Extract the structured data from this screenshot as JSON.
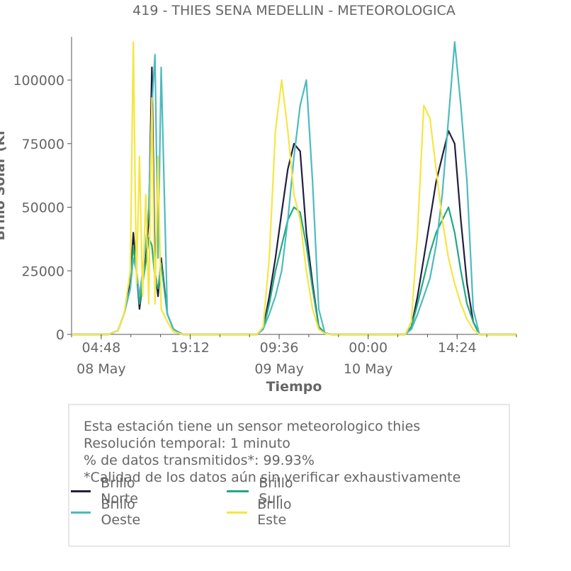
{
  "chart_data": {
    "type": "line",
    "title": "419 - THIES SENA MEDELLIN - METEOROLOGICA",
    "xlabel": "Tiempo",
    "ylabel": "Brillo Solar (Kl",
    "ylim": [
      0,
      117000
    ],
    "yticks": [
      0,
      25000,
      50000,
      75000,
      100000
    ],
    "ytick_labels": [
      "0",
      "25000",
      "50000",
      "75000",
      "100000"
    ],
    "xlim": [
      "2024-05-08 00:00",
      "2024-05-11 00:00"
    ],
    "xticks": [
      {
        "t": "2024-05-08 04:48",
        "label": "04:48",
        "date_label": "08 May"
      },
      {
        "t": "2024-05-08 19:12",
        "label": "19:12",
        "date_label": ""
      },
      {
        "t": "2024-05-09 09:36",
        "label": "09:36",
        "date_label": "09 May"
      },
      {
        "t": "2024-05-10 00:00",
        "label": "00:00",
        "date_label": "10 May"
      },
      {
        "t": "2024-05-10 14:24",
        "label": "14:24",
        "date_label": ""
      }
    ],
    "series": [
      {
        "name": "Brillo Norte",
        "color": "#1f1f3f",
        "x": [
          "2024-05-08 00:00",
          "2024-05-08 06:00",
          "2024-05-08 07:30",
          "2024-05-08 08:30",
          "2024-05-08 09:30",
          "2024-05-08 10:00",
          "2024-05-08 10:30",
          "2024-05-08 11:00",
          "2024-05-08 11:30",
          "2024-05-08 12:00",
          "2024-05-08 12:30",
          "2024-05-08 13:00",
          "2024-05-08 13:30",
          "2024-05-08 14:00",
          "2024-05-08 14:30",
          "2024-05-08 15:30",
          "2024-05-08 16:30",
          "2024-05-08 18:00",
          "2024-05-09 06:00",
          "2024-05-09 07:00",
          "2024-05-09 08:00",
          "2024-05-09 09:00",
          "2024-05-09 10:00",
          "2024-05-09 11:00",
          "2024-05-09 12:00",
          "2024-05-09 13:00",
          "2024-05-09 14:00",
          "2024-05-09 15:00",
          "2024-05-09 16:00",
          "2024-05-09 17:00",
          "2024-05-09 18:00",
          "2024-05-10 06:00",
          "2024-05-10 07:00",
          "2024-05-10 08:00",
          "2024-05-10 09:00",
          "2024-05-10 10:00",
          "2024-05-10 11:00",
          "2024-05-10 12:00",
          "2024-05-10 13:00",
          "2024-05-10 14:00",
          "2024-05-10 15:00",
          "2024-05-10 16:00",
          "2024-05-10 17:00",
          "2024-05-10 18:00",
          "2024-05-11 00:00"
        ],
        "values": [
          0,
          0,
          1500,
          8000,
          20000,
          40000,
          25000,
          10000,
          20000,
          30000,
          45000,
          105000,
          25000,
          15000,
          30000,
          8000,
          2000,
          0,
          0,
          2000,
          15000,
          30000,
          48000,
          65000,
          75000,
          72000,
          40000,
          20000,
          3000,
          500,
          0,
          0,
          3000,
          15000,
          30000,
          45000,
          60000,
          70000,
          80000,
          75000,
          45000,
          20000,
          5000,
          0,
          0
        ]
      },
      {
        "name": "Brillo Sur",
        "color": "#22a884",
        "x": [
          "2024-05-08 00:00",
          "2024-05-08 06:00",
          "2024-05-08 07:30",
          "2024-05-08 08:30",
          "2024-05-08 09:30",
          "2024-05-08 10:00",
          "2024-05-08 10:30",
          "2024-05-08 11:00",
          "2024-05-08 11:30",
          "2024-05-08 12:00",
          "2024-05-08 12:30",
          "2024-05-08 13:00",
          "2024-05-08 13:30",
          "2024-05-08 14:00",
          "2024-05-08 14:30",
          "2024-05-08 15:30",
          "2024-05-08 16:30",
          "2024-05-08 18:00",
          "2024-05-09 06:00",
          "2024-05-09 07:00",
          "2024-05-09 08:00",
          "2024-05-09 09:00",
          "2024-05-09 10:00",
          "2024-05-09 11:00",
          "2024-05-09 12:00",
          "2024-05-09 13:00",
          "2024-05-09 14:00",
          "2024-05-09 15:00",
          "2024-05-09 16:00",
          "2024-05-09 17:00",
          "2024-05-09 18:00",
          "2024-05-10 06:00",
          "2024-05-10 07:00",
          "2024-05-10 08:00",
          "2024-05-10 09:00",
          "2024-05-10 10:00",
          "2024-05-10 11:00",
          "2024-05-10 12:00",
          "2024-05-10 13:00",
          "2024-05-10 14:00",
          "2024-05-10 15:00",
          "2024-05-10 16:00",
          "2024-05-10 17:00",
          "2024-05-10 18:00",
          "2024-05-11 00:00"
        ],
        "values": [
          0,
          0,
          1500,
          8000,
          18000,
          35000,
          25000,
          12000,
          20000,
          28000,
          38000,
          35000,
          22000,
          18000,
          28000,
          8000,
          2000,
          0,
          0,
          2000,
          12000,
          25000,
          35000,
          45000,
          50000,
          48000,
          35000,
          18000,
          3000,
          500,
          0,
          0,
          3000,
          12000,
          22000,
          32000,
          40000,
          45000,
          50000,
          40000,
          25000,
          12000,
          5000,
          0,
          0
        ]
      },
      {
        "name": "Brillo Oeste",
        "color": "#4ebabf",
        "x": [
          "2024-05-08 00:00",
          "2024-05-08 06:00",
          "2024-05-08 07:30",
          "2024-05-08 08:30",
          "2024-05-08 09:30",
          "2024-05-08 10:00",
          "2024-05-08 10:30",
          "2024-05-08 11:00",
          "2024-05-08 11:30",
          "2024-05-08 12:00",
          "2024-05-08 12:30",
          "2024-05-08 13:00",
          "2024-05-08 13:30",
          "2024-05-08 14:00",
          "2024-05-08 14:30",
          "2024-05-08 15:30",
          "2024-05-08 16:30",
          "2024-05-08 18:00",
          "2024-05-09 06:00",
          "2024-05-09 07:00",
          "2024-05-09 08:00",
          "2024-05-09 09:00",
          "2024-05-09 10:00",
          "2024-05-09 11:00",
          "2024-05-09 12:00",
          "2024-05-09 13:00",
          "2024-05-09 14:00",
          "2024-05-09 15:00",
          "2024-05-09 16:00",
          "2024-05-09 17:00",
          "2024-05-09 18:00",
          "2024-05-10 06:00",
          "2024-05-10 07:00",
          "2024-05-10 08:00",
          "2024-05-10 09:00",
          "2024-05-10 10:00",
          "2024-05-10 11:00",
          "2024-05-10 12:00",
          "2024-05-10 13:00",
          "2024-05-10 14:00",
          "2024-05-10 15:00",
          "2024-05-10 16:00",
          "2024-05-10 17:00",
          "2024-05-10 18:00",
          "2024-05-11 00:00"
        ],
        "values": [
          0,
          0,
          1500,
          8000,
          18000,
          30000,
          25000,
          15000,
          25000,
          35000,
          50000,
          90000,
          110000,
          30000,
          105000,
          8000,
          2000,
          0,
          0,
          2000,
          8000,
          15000,
          25000,
          45000,
          70000,
          90000,
          100000,
          60000,
          10000,
          500,
          0,
          0,
          2000,
          8000,
          15000,
          22000,
          35000,
          55000,
          85000,
          115000,
          90000,
          60000,
          10000,
          0,
          0
        ]
      },
      {
        "name": "Brillo Este",
        "color": "#f5e642",
        "x": [
          "2024-05-08 00:00",
          "2024-05-08 06:00",
          "2024-05-08 07:30",
          "2024-05-08 08:30",
          "2024-05-08 09:30",
          "2024-05-08 10:00",
          "2024-05-08 10:30",
          "2024-05-08 11:00",
          "2024-05-08 11:30",
          "2024-05-08 12:00",
          "2024-05-08 12:30",
          "2024-05-08 13:00",
          "2024-05-08 13:30",
          "2024-05-08 14:00",
          "2024-05-08 14:30",
          "2024-05-08 15:30",
          "2024-05-08 16:30",
          "2024-05-08 18:00",
          "2024-05-09 06:00",
          "2024-05-09 07:00",
          "2024-05-09 08:00",
          "2024-05-09 09:00",
          "2024-05-09 10:00",
          "2024-05-09 11:00",
          "2024-05-09 12:00",
          "2024-05-09 13:00",
          "2024-05-09 14:00",
          "2024-05-09 15:00",
          "2024-05-09 16:00",
          "2024-05-09 17:00",
          "2024-05-09 18:00",
          "2024-05-10 06:00",
          "2024-05-10 07:00",
          "2024-05-10 08:00",
          "2024-05-10 09:00",
          "2024-05-10 10:00",
          "2024-05-10 11:00",
          "2024-05-10 12:00",
          "2024-05-10 13:00",
          "2024-05-10 14:00",
          "2024-05-10 15:00",
          "2024-05-10 16:00",
          "2024-05-10 17:00",
          "2024-05-10 18:00",
          "2024-05-11 00:00"
        ],
        "values": [
          0,
          0,
          1500,
          8000,
          25000,
          115000,
          20000,
          70000,
          15000,
          55000,
          12000,
          93000,
          12000,
          70000,
          10000,
          5000,
          1000,
          0,
          0,
          3000,
          30000,
          80000,
          100000,
          80000,
          55000,
          45000,
          25000,
          10000,
          2000,
          300,
          0,
          0,
          5000,
          40000,
          90000,
          85000,
          65000,
          45000,
          30000,
          20000,
          12000,
          6000,
          2000,
          0,
          0
        ]
      }
    ]
  },
  "info": {
    "lines": [
      "Esta estación tiene un sensor meteorologico thies",
      "Resolución temporal: 1 minuto",
      "% de datos transmitidos*: 99.93%",
      "*Calidad de los datos aún sin verificar exhaustivamente"
    ]
  },
  "legend": {
    "items": [
      {
        "label": "Brillo Norte",
        "color": "#1f1f3f"
      },
      {
        "label": "Brillo Sur",
        "color": "#22a884"
      },
      {
        "label": "Brillo Oeste",
        "color": "#4ebabf"
      },
      {
        "label": "Brillo Este",
        "color": "#f5e642"
      }
    ]
  }
}
